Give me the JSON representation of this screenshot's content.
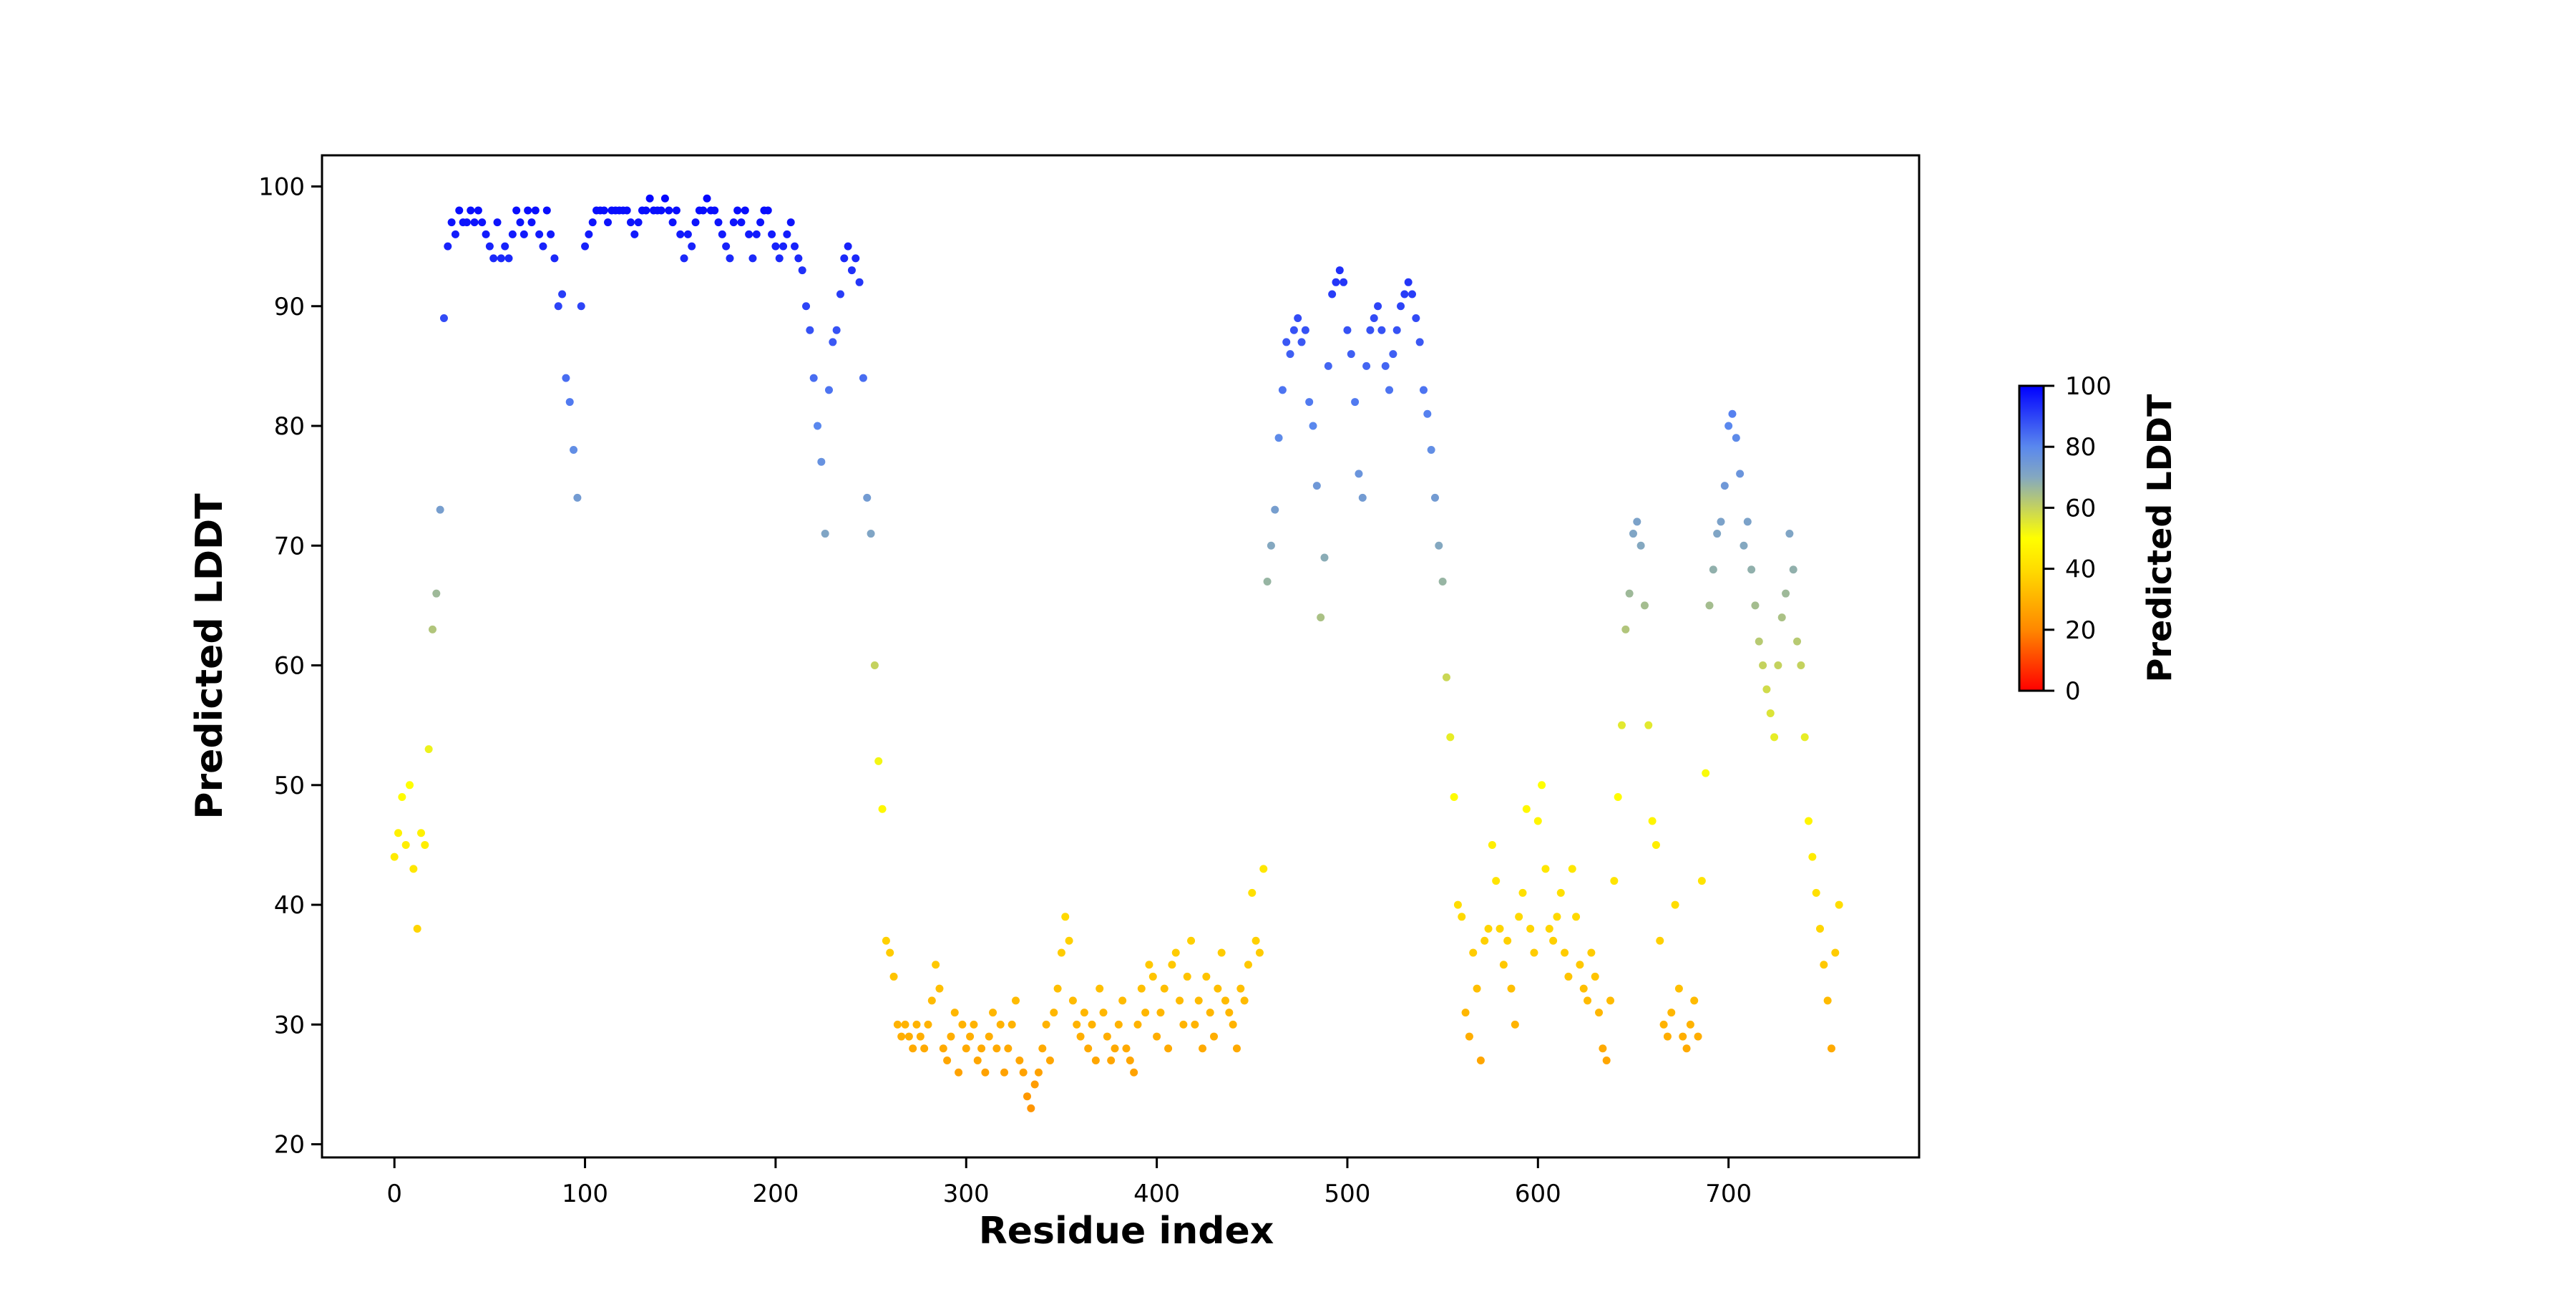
{
  "chart_data": {
    "type": "scatter",
    "title": "",
    "xlabel": "Residue index",
    "ylabel": "Predicted LDDT",
    "xlim": [
      -38,
      800
    ],
    "ylim": [
      18.9,
      102.6
    ],
    "xticks": [
      0,
      100,
      200,
      300,
      400,
      500,
      600,
      700
    ],
    "yticks": [
      20,
      30,
      40,
      50,
      60,
      70,
      80,
      90,
      100
    ],
    "grid": false,
    "x_start": 0,
    "x_step": 2,
    "y": [
      44,
      46,
      49,
      45,
      50,
      43,
      38,
      46,
      45,
      53,
      63,
      66,
      73,
      89,
      95,
      97,
      96,
      98,
      97,
      97,
      98,
      97,
      98,
      97,
      96,
      95,
      94,
      97,
      94,
      95,
      94,
      96,
      98,
      97,
      96,
      98,
      97,
      98,
      96,
      95,
      98,
      96,
      94,
      90,
      91,
      84,
      82,
      78,
      74,
      90,
      95,
      96,
      97,
      98,
      98,
      98,
      97,
      98,
      98,
      98,
      98,
      98,
      97,
      96,
      97,
      98,
      98,
      99,
      98,
      98,
      98,
      99,
      98,
      97,
      98,
      96,
      94,
      96,
      95,
      97,
      98,
      98,
      99,
      98,
      98,
      97,
      96,
      95,
      94,
      97,
      98,
      97,
      98,
      96,
      94,
      96,
      97,
      98,
      98,
      96,
      95,
      94,
      95,
      96,
      97,
      95,
      94,
      93,
      90,
      88,
      84,
      80,
      77,
      71,
      83,
      87,
      88,
      91,
      94,
      95,
      93,
      94,
      92,
      84,
      74,
      71,
      60,
      52,
      48,
      37,
      36,
      34,
      30,
      29,
      30,
      29,
      28,
      30,
      29,
      28,
      30,
      32,
      35,
      33,
      28,
      27,
      29,
      31,
      26,
      30,
      28,
      29,
      30,
      27,
      28,
      26,
      29,
      31,
      28,
      30,
      26,
      28,
      30,
      32,
      27,
      26,
      24,
      23,
      25,
      26,
      28,
      30,
      27,
      31,
      33,
      36,
      39,
      37,
      32,
      30,
      29,
      31,
      28,
      30,
      27,
      33,
      31,
      29,
      27,
      28,
      30,
      32,
      28,
      27,
      26,
      30,
      33,
      31,
      35,
      34,
      29,
      31,
      33,
      28,
      35,
      36,
      32,
      30,
      34,
      37,
      30,
      32,
      28,
      34,
      31,
      29,
      33,
      36,
      32,
      31,
      30,
      28,
      33,
      32,
      35,
      41,
      37,
      36,
      43,
      67,
      70,
      73,
      79,
      83,
      87,
      86,
      88,
      89,
      87,
      88,
      82,
      80,
      75,
      64,
      69,
      85,
      91,
      92,
      93,
      92,
      88,
      86,
      82,
      76,
      74,
      85,
      88,
      89,
      90,
      88,
      85,
      83,
      86,
      88,
      90,
      91,
      92,
      91,
      89,
      87,
      83,
      81,
      78,
      74,
      70,
      67,
      59,
      54,
      49,
      40,
      39,
      31,
      29,
      36,
      33,
      27,
      37,
      38,
      45,
      42,
      38,
      35,
      37,
      33,
      30,
      39,
      41,
      48,
      38,
      36,
      47,
      50,
      43,
      38,
      37,
      39,
      41,
      36,
      34,
      43,
      39,
      35,
      33,
      32,
      36,
      34,
      31,
      28,
      27,
      32,
      42,
      49,
      55,
      63,
      66,
      71,
      72,
      70,
      65,
      55,
      47,
      45,
      37,
      30,
      29,
      31,
      40,
      33,
      29,
      28,
      30,
      32,
      29,
      42,
      51,
      65,
      68,
      71,
      72,
      75,
      80,
      81,
      79,
      76,
      70,
      72,
      68,
      65,
      62,
      60,
      58,
      56,
      54,
      60,
      64,
      66,
      71,
      68,
      62,
      60,
      54,
      47,
      44,
      41,
      38,
      35,
      32,
      28,
      36,
      40
    ],
    "colorbar": {
      "label": "Predicted LDDT",
      "range": [
        0,
        100
      ],
      "ticks": [
        0,
        20,
        40,
        60,
        80,
        100
      ],
      "stops": [
        {
          "v": 0,
          "c": "#ff0000"
        },
        {
          "v": 20,
          "c": "#ff8800"
        },
        {
          "v": 40,
          "c": "#ffdd00"
        },
        {
          "v": 50,
          "c": "#ffff00"
        },
        {
          "v": 60,
          "c": "#c4d25e"
        },
        {
          "v": 70,
          "c": "#84a8c0"
        },
        {
          "v": 80,
          "c": "#5a88ee"
        },
        {
          "v": 100,
          "c": "#0000ff"
        }
      ]
    }
  }
}
